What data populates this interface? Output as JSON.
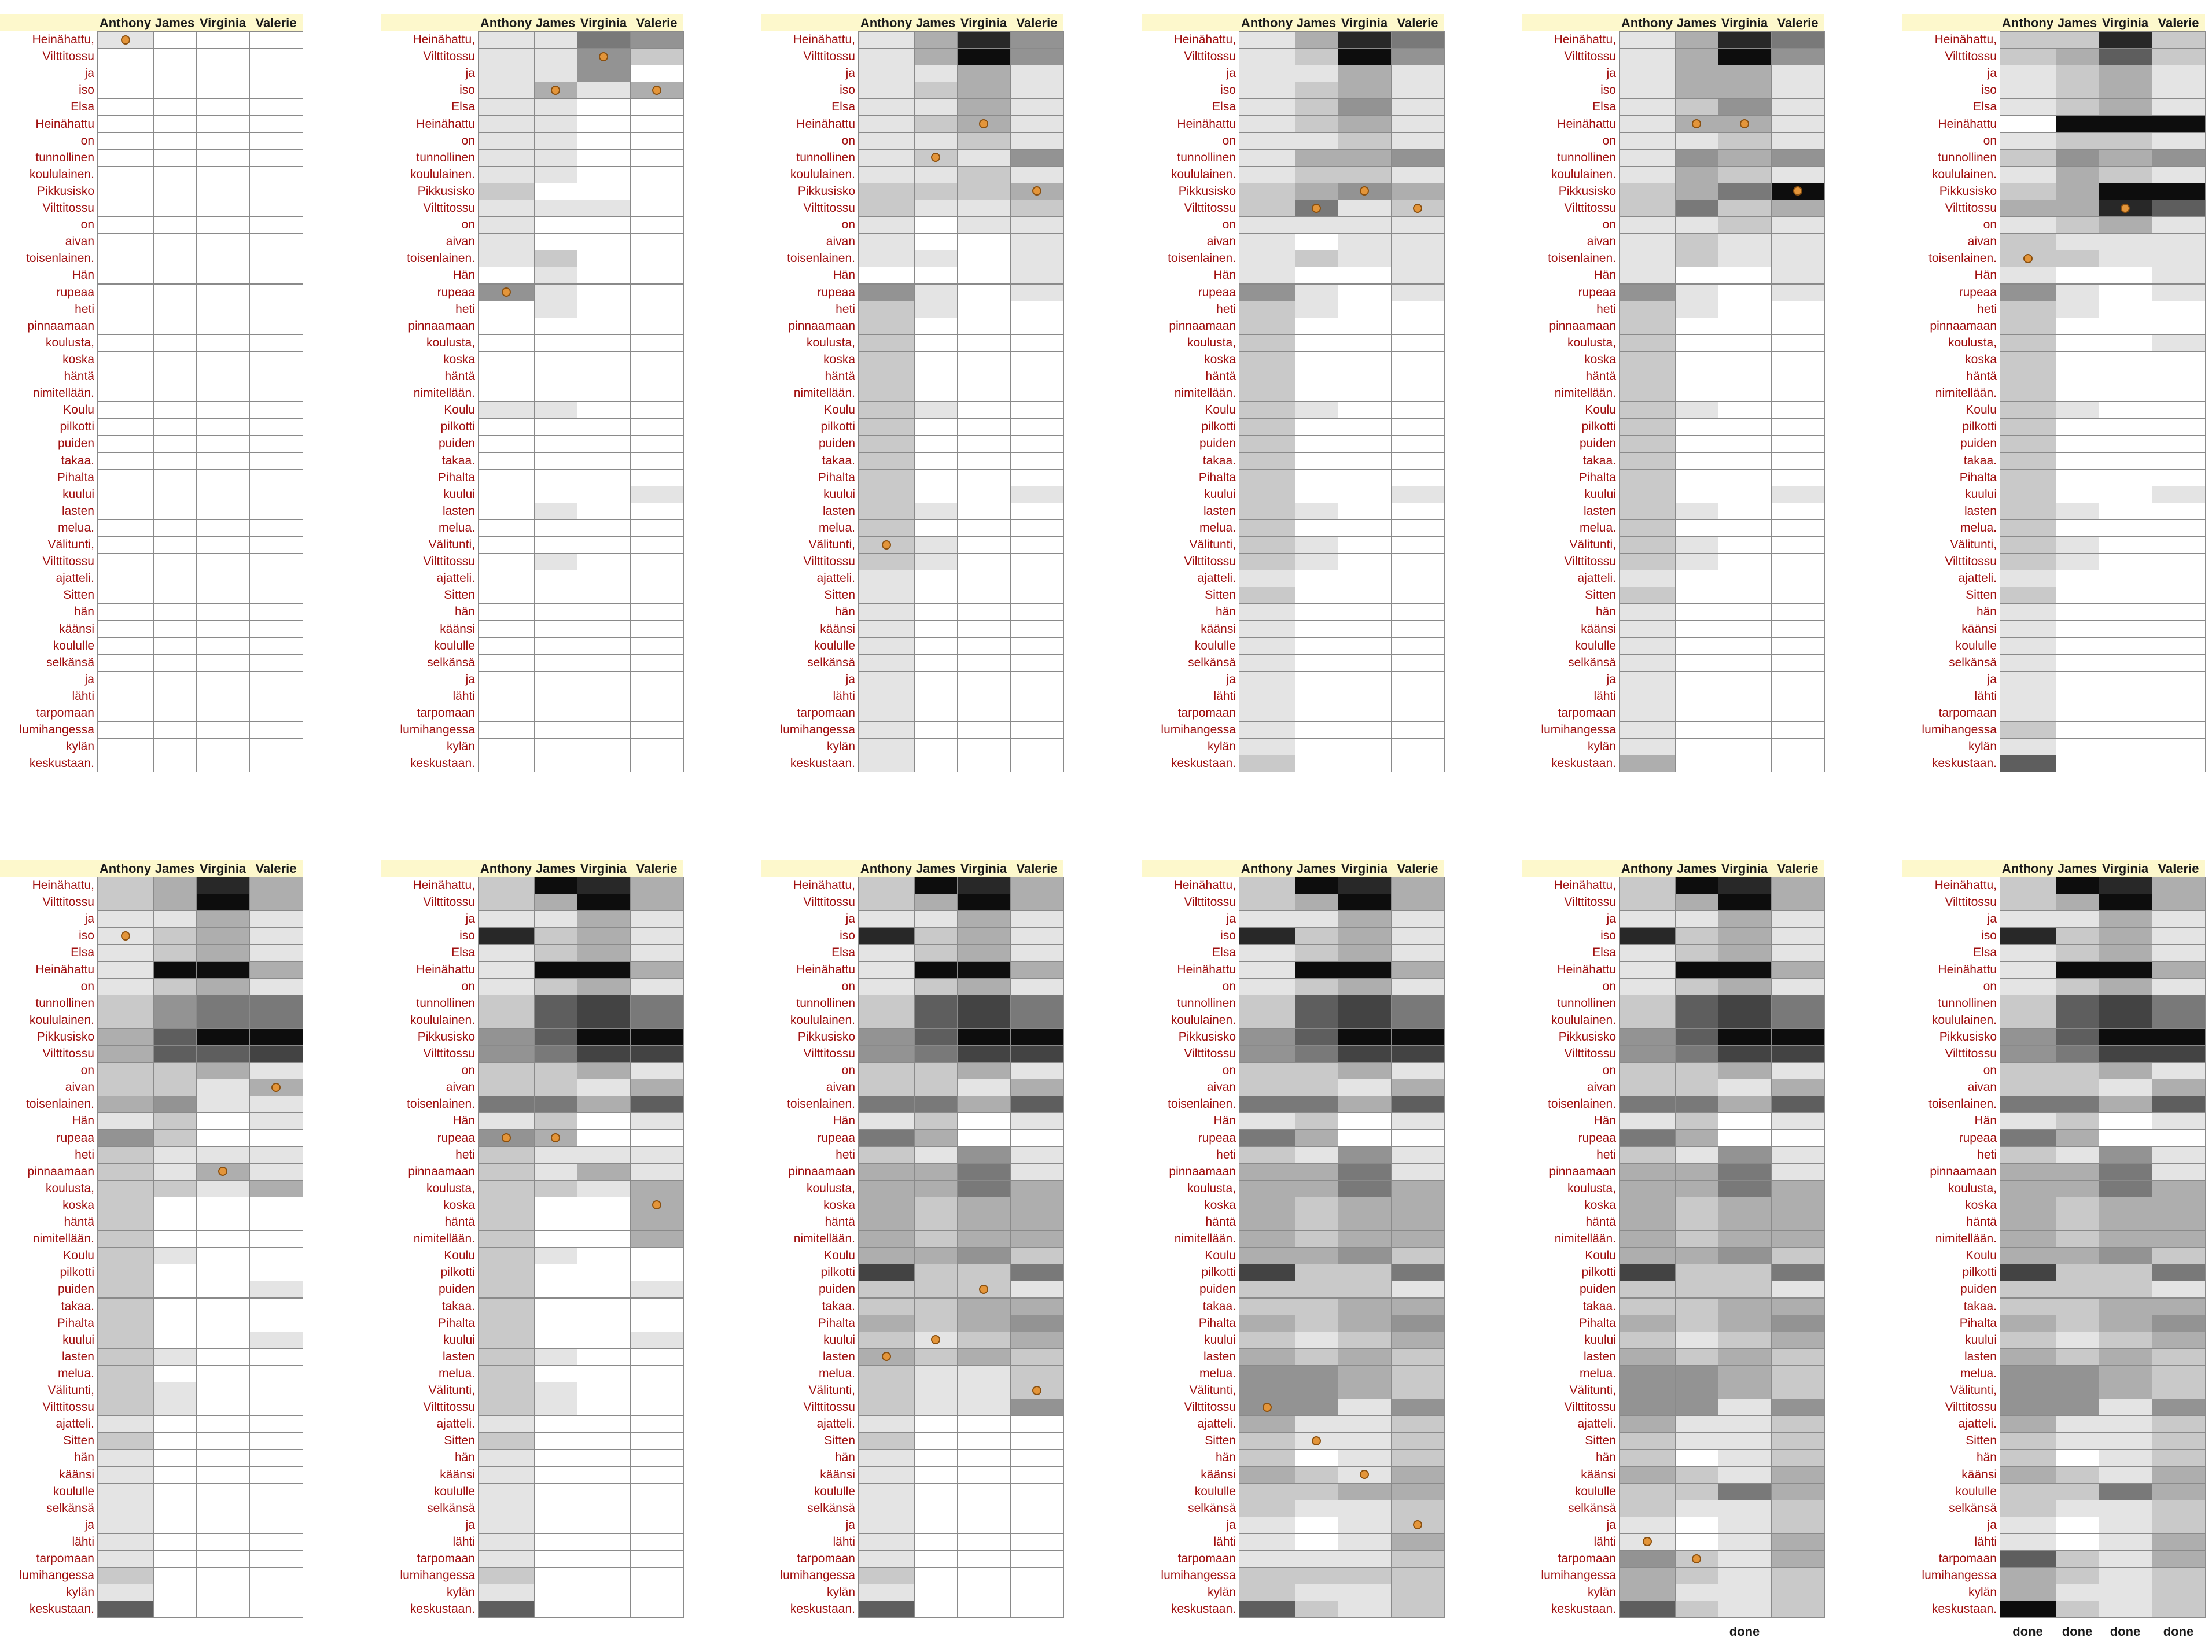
{
  "chart_data": {
    "type": "heatmap",
    "panel_layout": {
      "columns": 6,
      "rows": 2
    },
    "speakers": [
      "Anthony",
      "James",
      "Virginia",
      "Valerie"
    ],
    "words": [
      "Heinähattu,",
      "Vilttitossu",
      "ja",
      "iso",
      "Elsa",
      "Heinähattu",
      "on",
      "tunnollinen",
      "koululainen.",
      "Pikkusisko",
      "Vilttitossu",
      "on",
      "aivan",
      "toisenlainen.",
      "Hän",
      "rupeaa",
      "heti",
      "pinnaamaan",
      "koulusta,",
      "koska",
      "häntä",
      "nimitellään.",
      "Koulu",
      "pilkotti",
      "puiden",
      "takaa.",
      "Pihalta",
      "kuului",
      "lasten",
      "melua.",
      "Välitunti,",
      "Vilttitossu",
      "ajatteli.",
      "Sitten",
      "hän",
      "käänsi",
      "koululle",
      "selkänsä",
      "ja",
      "lähti",
      "tarpomaan",
      "lumihangessa",
      "kylän",
      "keskustaan."
    ],
    "value_scale": "0 (white) to 9 (black)",
    "panels": [
      {
        "cells": [
          "1000",
          "0000",
          "0000",
          "0000",
          "0000",
          "0000",
          "0000",
          "0000",
          "0000",
          "0000",
          "0000",
          "0000",
          "0000",
          "0000",
          "0000",
          "0000",
          "0000",
          "0000",
          "0000",
          "0000",
          "0000",
          "0000",
          "0000",
          "0000",
          "0000",
          "0000",
          "0000",
          "0000",
          "0000",
          "0000",
          "0000",
          "0000",
          "0000",
          "0000",
          "0000",
          "0000",
          "0000",
          "0000",
          "0000",
          "0000",
          "0000",
          "0000",
          "0000",
          "0000"
        ],
        "dots": [
          [
            0,
            0
          ]
        ]
      },
      {
        "cells": [
          "1154",
          "1142",
          "1140",
          "1313",
          "1100",
          "1100",
          "1100",
          "1100",
          "1100",
          "2000",
          "1110",
          "1000",
          "1000",
          "1200",
          "0100",
          "4100",
          "0100",
          "0000",
          "0000",
          "0000",
          "0000",
          "0000",
          "1100",
          "0000",
          "0000",
          "0000",
          "0000",
          "0001",
          "0100",
          "0000",
          "0000",
          "0100",
          "0000",
          "0000",
          "0000",
          "0000",
          "0000",
          "0000",
          "0000",
          "0000",
          "0000",
          "0000",
          "0000",
          "0000"
        ],
        "dots": [
          [
            1,
            2
          ],
          [
            3,
            1
          ],
          [
            3,
            3
          ],
          [
            15,
            0
          ]
        ]
      },
      {
        "cells": [
          "1384",
          "1394",
          "1131",
          "1231",
          "1131",
          "1231",
          "1121",
          "1214",
          "1121",
          "2223",
          "2112",
          "1011",
          "1001",
          "1101",
          "0001",
          "4101",
          "2100",
          "2000",
          "2000",
          "2000",
          "2000",
          "2000",
          "2100",
          "2000",
          "2000",
          "2000",
          "2000",
          "2001",
          "2100",
          "2000",
          "2100",
          "2100",
          "1000",
          "1000",
          "1000",
          "1000",
          "1000",
          "1000",
          "1000",
          "1000",
          "1000",
          "1000",
          "1000",
          "1000"
        ],
        "dots": [
          [
            5,
            2
          ],
          [
            7,
            1
          ],
          [
            9,
            3
          ],
          [
            30,
            0
          ]
        ]
      },
      {
        "cells": [
          "1385",
          "1294",
          "1131",
          "1231",
          "1241",
          "1231",
          "1121",
          "1334",
          "1221",
          "2343",
          "2512",
          "1111",
          "1011",
          "1211",
          "1001",
          "4101",
          "2100",
          "2000",
          "2000",
          "2000",
          "2000",
          "2000",
          "2100",
          "2000",
          "2000",
          "2000",
          "2000",
          "2001",
          "2100",
          "2000",
          "2100",
          "2100",
          "1000",
          "2000",
          "1000",
          "1000",
          "1000",
          "1000",
          "1000",
          "1000",
          "1000",
          "1000",
          "1000",
          "2000"
        ],
        "dots": [
          [
            9,
            2
          ],
          [
            10,
            1
          ],
          [
            10,
            3
          ]
        ]
      },
      {
        "cells": [
          "1385",
          "1394",
          "1331",
          "1331",
          "1241",
          "1331",
          "1121",
          "1434",
          "1321",
          "2359",
          "2523",
          "1121",
          "1211",
          "1211",
          "1001",
          "4101",
          "2100",
          "2000",
          "2000",
          "2000",
          "2000",
          "2000",
          "2100",
          "2000",
          "2000",
          "2000",
          "2000",
          "2001",
          "2100",
          "2000",
          "2100",
          "2100",
          "1000",
          "2000",
          "1000",
          "1000",
          "1000",
          "1000",
          "1000",
          "1000",
          "1000",
          "1000",
          "1000",
          "3000"
        ],
        "dots": [
          [
            5,
            1
          ],
          [
            5,
            2
          ],
          [
            9,
            3
          ],
          [
            9,
            3
          ]
        ]
      },
      {
        "cells": [
          "2282",
          "2362",
          "1231",
          "1231",
          "1231",
          "0999",
          "1221",
          "2434",
          "1321",
          "2399",
          "3386",
          "1231",
          "2111",
          "2211",
          "1001",
          "4101",
          "2100",
          "2000",
          "2001",
          "2000",
          "2000",
          "2000",
          "2100",
          "2000",
          "2000",
          "2000",
          "2000",
          "2001",
          "2100",
          "2000",
          "2100",
          "2100",
          "1000",
          "2000",
          "1000",
          "1000",
          "1000",
          "1000",
          "1000",
          "1000",
          "1000",
          "2000",
          "1000",
          "6000"
        ],
        "dots": [
          [
            10,
            2
          ],
          [
            13,
            0
          ]
        ]
      },
      {
        "cells": [
          "2383",
          "2393",
          "1131",
          "1231",
          "1231",
          "1993",
          "1231",
          "2455",
          "2455",
          "3699",
          "3667",
          "2231",
          "2213",
          "3411",
          "1201",
          "4200",
          "2111",
          "2131",
          "2213",
          "2000",
          "2000",
          "2000",
          "2100",
          "2000",
          "2001",
          "2000",
          "2000",
          "2001",
          "2100",
          "2000",
          "2100",
          "2100",
          "1000",
          "2000",
          "1000",
          "1000",
          "1000",
          "1000",
          "1000",
          "1000",
          "1000",
          "2000",
          "1000",
          "6000"
        ],
        "dots": [
          [
            3,
            0
          ],
          [
            12,
            3
          ],
          [
            17,
            2
          ]
        ]
      },
      {
        "cells": [
          "2983",
          "2393",
          "1131",
          "8231",
          "1231",
          "1993",
          "1231",
          "2675",
          "2675",
          "4699",
          "4577",
          "2231",
          "2213",
          "5536",
          "1201",
          "4300",
          "2111",
          "2131",
          "2213",
          "2003",
          "2003",
          "2003",
          "2100",
          "2000",
          "2001",
          "2000",
          "2000",
          "2001",
          "2100",
          "2000",
          "2100",
          "2100",
          "1000",
          "2000",
          "1000",
          "1000",
          "1000",
          "1000",
          "1000",
          "1000",
          "1000",
          "2000",
          "1000",
          "6000"
        ],
        "dots": [
          [
            15,
            0
          ],
          [
            15,
            1
          ],
          [
            19,
            3
          ]
        ]
      },
      {
        "cells": [
          "2983",
          "2393",
          "1131",
          "8231",
          "1231",
          "1993",
          "1231",
          "2675",
          "2675",
          "4699",
          "4577",
          "2231",
          "2213",
          "5536",
          "1201",
          "5300",
          "2141",
          "3351",
          "3353",
          "3233",
          "3233",
          "3233",
          "3342",
          "7225",
          "2221",
          "2233",
          "3234",
          "2123",
          "3232",
          "2112",
          "2112",
          "2114",
          "1000",
          "2000",
          "1000",
          "1000",
          "1000",
          "1000",
          "1000",
          "1000",
          "1000",
          "2000",
          "1000",
          "6000"
        ],
        "dots": [
          [
            24,
            2
          ],
          [
            27,
            1
          ],
          [
            28,
            0
          ],
          [
            30,
            3
          ]
        ]
      },
      {
        "cells": [
          "2983",
          "2393",
          "1131",
          "8231",
          "1231",
          "1993",
          "1231",
          "2675",
          "2675",
          "4699",
          "4577",
          "2231",
          "2213",
          "5536",
          "1201",
          "5300",
          "2141",
          "3351",
          "3353",
          "3233",
          "3233",
          "3233",
          "3342",
          "7225",
          "2221",
          "2233",
          "3234",
          "2123",
          "3232",
          "4432",
          "4432",
          "4414",
          "3112",
          "2112",
          "2012",
          "3213",
          "2233",
          "2112",
          "1012",
          "1013",
          "1112",
          "2222",
          "2112",
          "6212"
        ],
        "dots": [
          [
            31,
            0
          ],
          [
            33,
            1
          ],
          [
            35,
            2
          ],
          [
            38,
            3
          ]
        ]
      },
      {
        "cells": [
          "2983",
          "2393",
          "1131",
          "8231",
          "1231",
          "1993",
          "1231",
          "2675",
          "2675",
          "4699",
          "4577",
          "2231",
          "2213",
          "5536",
          "1201",
          "5300",
          "2141",
          "3351",
          "3353",
          "3233",
          "3233",
          "3233",
          "3342",
          "7225",
          "2221",
          "2233",
          "3234",
          "2123",
          "3232",
          "4432",
          "4432",
          "4414",
          "3112",
          "2112",
          "2012",
          "3213",
          "2253",
          "2112",
          "1012",
          "1013",
          "4213",
          "3212",
          "3112",
          "6212"
        ],
        "dots": [
          [
            39,
            0
          ],
          [
            40,
            1
          ]
        ]
      },
      {
        "cells": [
          "2983",
          "2393",
          "1131",
          "8231",
          "1231",
          "1993",
          "1231",
          "2675",
          "2675",
          "4699",
          "4577",
          "2231",
          "2213",
          "5536",
          "1201",
          "5300",
          "2141",
          "3351",
          "3353",
          "3233",
          "3233",
          "3233",
          "3342",
          "7225",
          "2221",
          "2233",
          "3234",
          "2123",
          "3232",
          "4432",
          "4432",
          "4414",
          "3112",
          "2112",
          "2012",
          "3213",
          "2253",
          "2112",
          "1012",
          "1013",
          "6213",
          "3212",
          "3112",
          "9212"
        ],
        "dots": []
      }
    ],
    "footer": {
      "label": "done",
      "panel_10": [
        2
      ],
      "panel_11": [
        0,
        1,
        2,
        3
      ]
    }
  }
}
